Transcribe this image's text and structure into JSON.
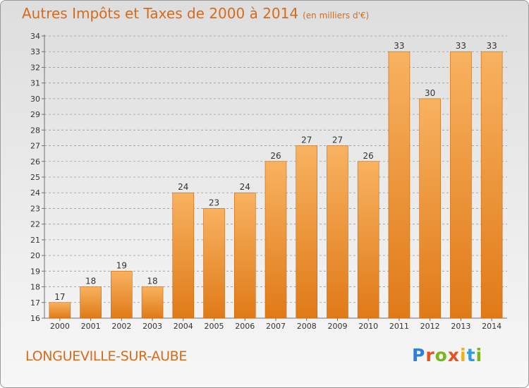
{
  "header": {
    "title": "Autres Impôts et Taxes de 2000 à 2014",
    "unit": "(en milliers d'€)"
  },
  "footer": {
    "city": "LONGUEVILLE-SUR-AUBE",
    "brand_letters": [
      "P",
      "r",
      "o",
      "x",
      "i",
      "t",
      "i"
    ],
    "brand_colors": [
      "#2f7fd8",
      "#e8501c",
      "#79b51c",
      "#e8501c",
      "#f0b21a",
      "#2f9be0",
      "#79b51c"
    ]
  },
  "colors": {
    "bar_light": "#f8b260",
    "bar_dark": "#e07a18",
    "bar_edge": "#c8660e",
    "title": "#d96a1a",
    "axis": "#707070",
    "grid": "#9a9a9a"
  },
  "chart_data": {
    "type": "bar",
    "categories": [
      "2000",
      "2001",
      "2002",
      "2003",
      "2004",
      "2005",
      "2006",
      "2007",
      "2008",
      "2009",
      "2010",
      "2011",
      "2012",
      "2013",
      "2014"
    ],
    "values": [
      17,
      18,
      19,
      18,
      24,
      23,
      24,
      26,
      27,
      27,
      26,
      33,
      30,
      33,
      33
    ],
    "ylim": [
      16,
      34
    ],
    "yticks": [
      16,
      17,
      18,
      19,
      20,
      21,
      22,
      23,
      24,
      25,
      26,
      27,
      28,
      29,
      30,
      31,
      32,
      33,
      34
    ],
    "grid": "horizontal dashed",
    "data_labels": true
  }
}
